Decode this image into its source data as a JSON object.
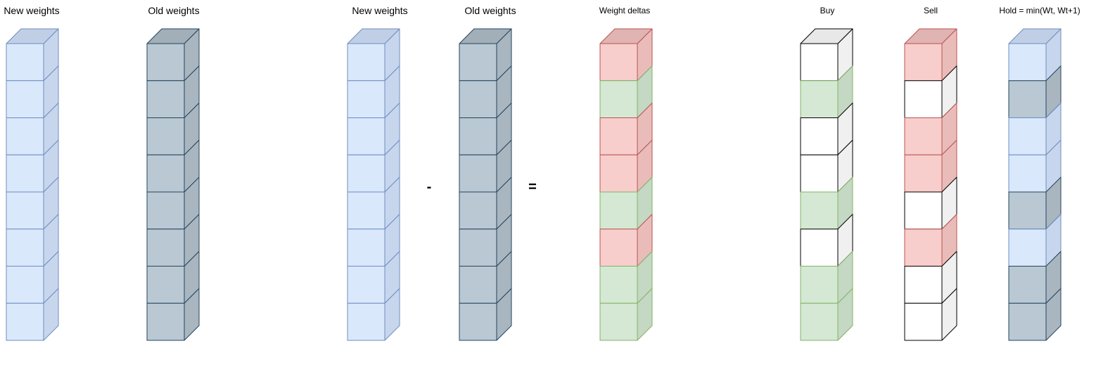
{
  "palette": {
    "blue": {
      "face": "#dae8fc",
      "side": "#c8d6ed",
      "top": "#c1cfe6",
      "stroke": "#6c8ebf"
    },
    "slate": {
      "face": "#bac8d3",
      "side": "#a9b6c0",
      "top": "#a2afb9",
      "stroke": "#23445d"
    },
    "red": {
      "face": "#f8cecc",
      "side": "#e9bcba",
      "top": "#e0b4b2",
      "stroke": "#b85450"
    },
    "green": {
      "face": "#d5e8d4",
      "side": "#c4d8c3",
      "top": "#bfd3be",
      "stroke": "#82b366"
    },
    "white": {
      "face": "#ffffff",
      "side": "#f0f0f0",
      "top": "#e8e8e8",
      "stroke": "#000000"
    }
  },
  "operators": {
    "minus": "-",
    "equals": "="
  },
  "columns": [
    {
      "id": "new-weights-1",
      "label": "New weights",
      "cells": [
        "blue",
        "blue",
        "blue",
        "blue",
        "blue",
        "blue",
        "blue",
        "blue"
      ]
    },
    {
      "id": "old-weights-1",
      "label": "Old weights",
      "cells": [
        "slate",
        "slate",
        "slate",
        "slate",
        "slate",
        "slate",
        "slate",
        "slate"
      ]
    },
    {
      "id": "new-weights-2",
      "label": "New weights",
      "cells": [
        "blue",
        "blue",
        "blue",
        "blue",
        "blue",
        "blue",
        "blue",
        "blue"
      ]
    },
    {
      "id": "old-weights-2",
      "label": "Old weights",
      "cells": [
        "slate",
        "slate",
        "slate",
        "slate",
        "slate",
        "slate",
        "slate",
        "slate"
      ]
    },
    {
      "id": "weight-deltas",
      "label": "Weight deltas",
      "cells": [
        "red",
        "green",
        "red",
        "red",
        "green",
        "red",
        "green",
        "green"
      ]
    },
    {
      "id": "buy",
      "label": "Buy",
      "cells": [
        "white",
        "green",
        "white",
        "white",
        "green",
        "white",
        "green",
        "green"
      ]
    },
    {
      "id": "sell",
      "label": "Sell",
      "cells": [
        "red",
        "white",
        "red",
        "red",
        "white",
        "red",
        "white",
        "white"
      ]
    },
    {
      "id": "hold",
      "label": "Hold = min(Wt, Wt+1)",
      "cells": [
        "blue",
        "slate",
        "blue",
        "blue",
        "slate",
        "blue",
        "slate",
        "slate"
      ]
    }
  ]
}
